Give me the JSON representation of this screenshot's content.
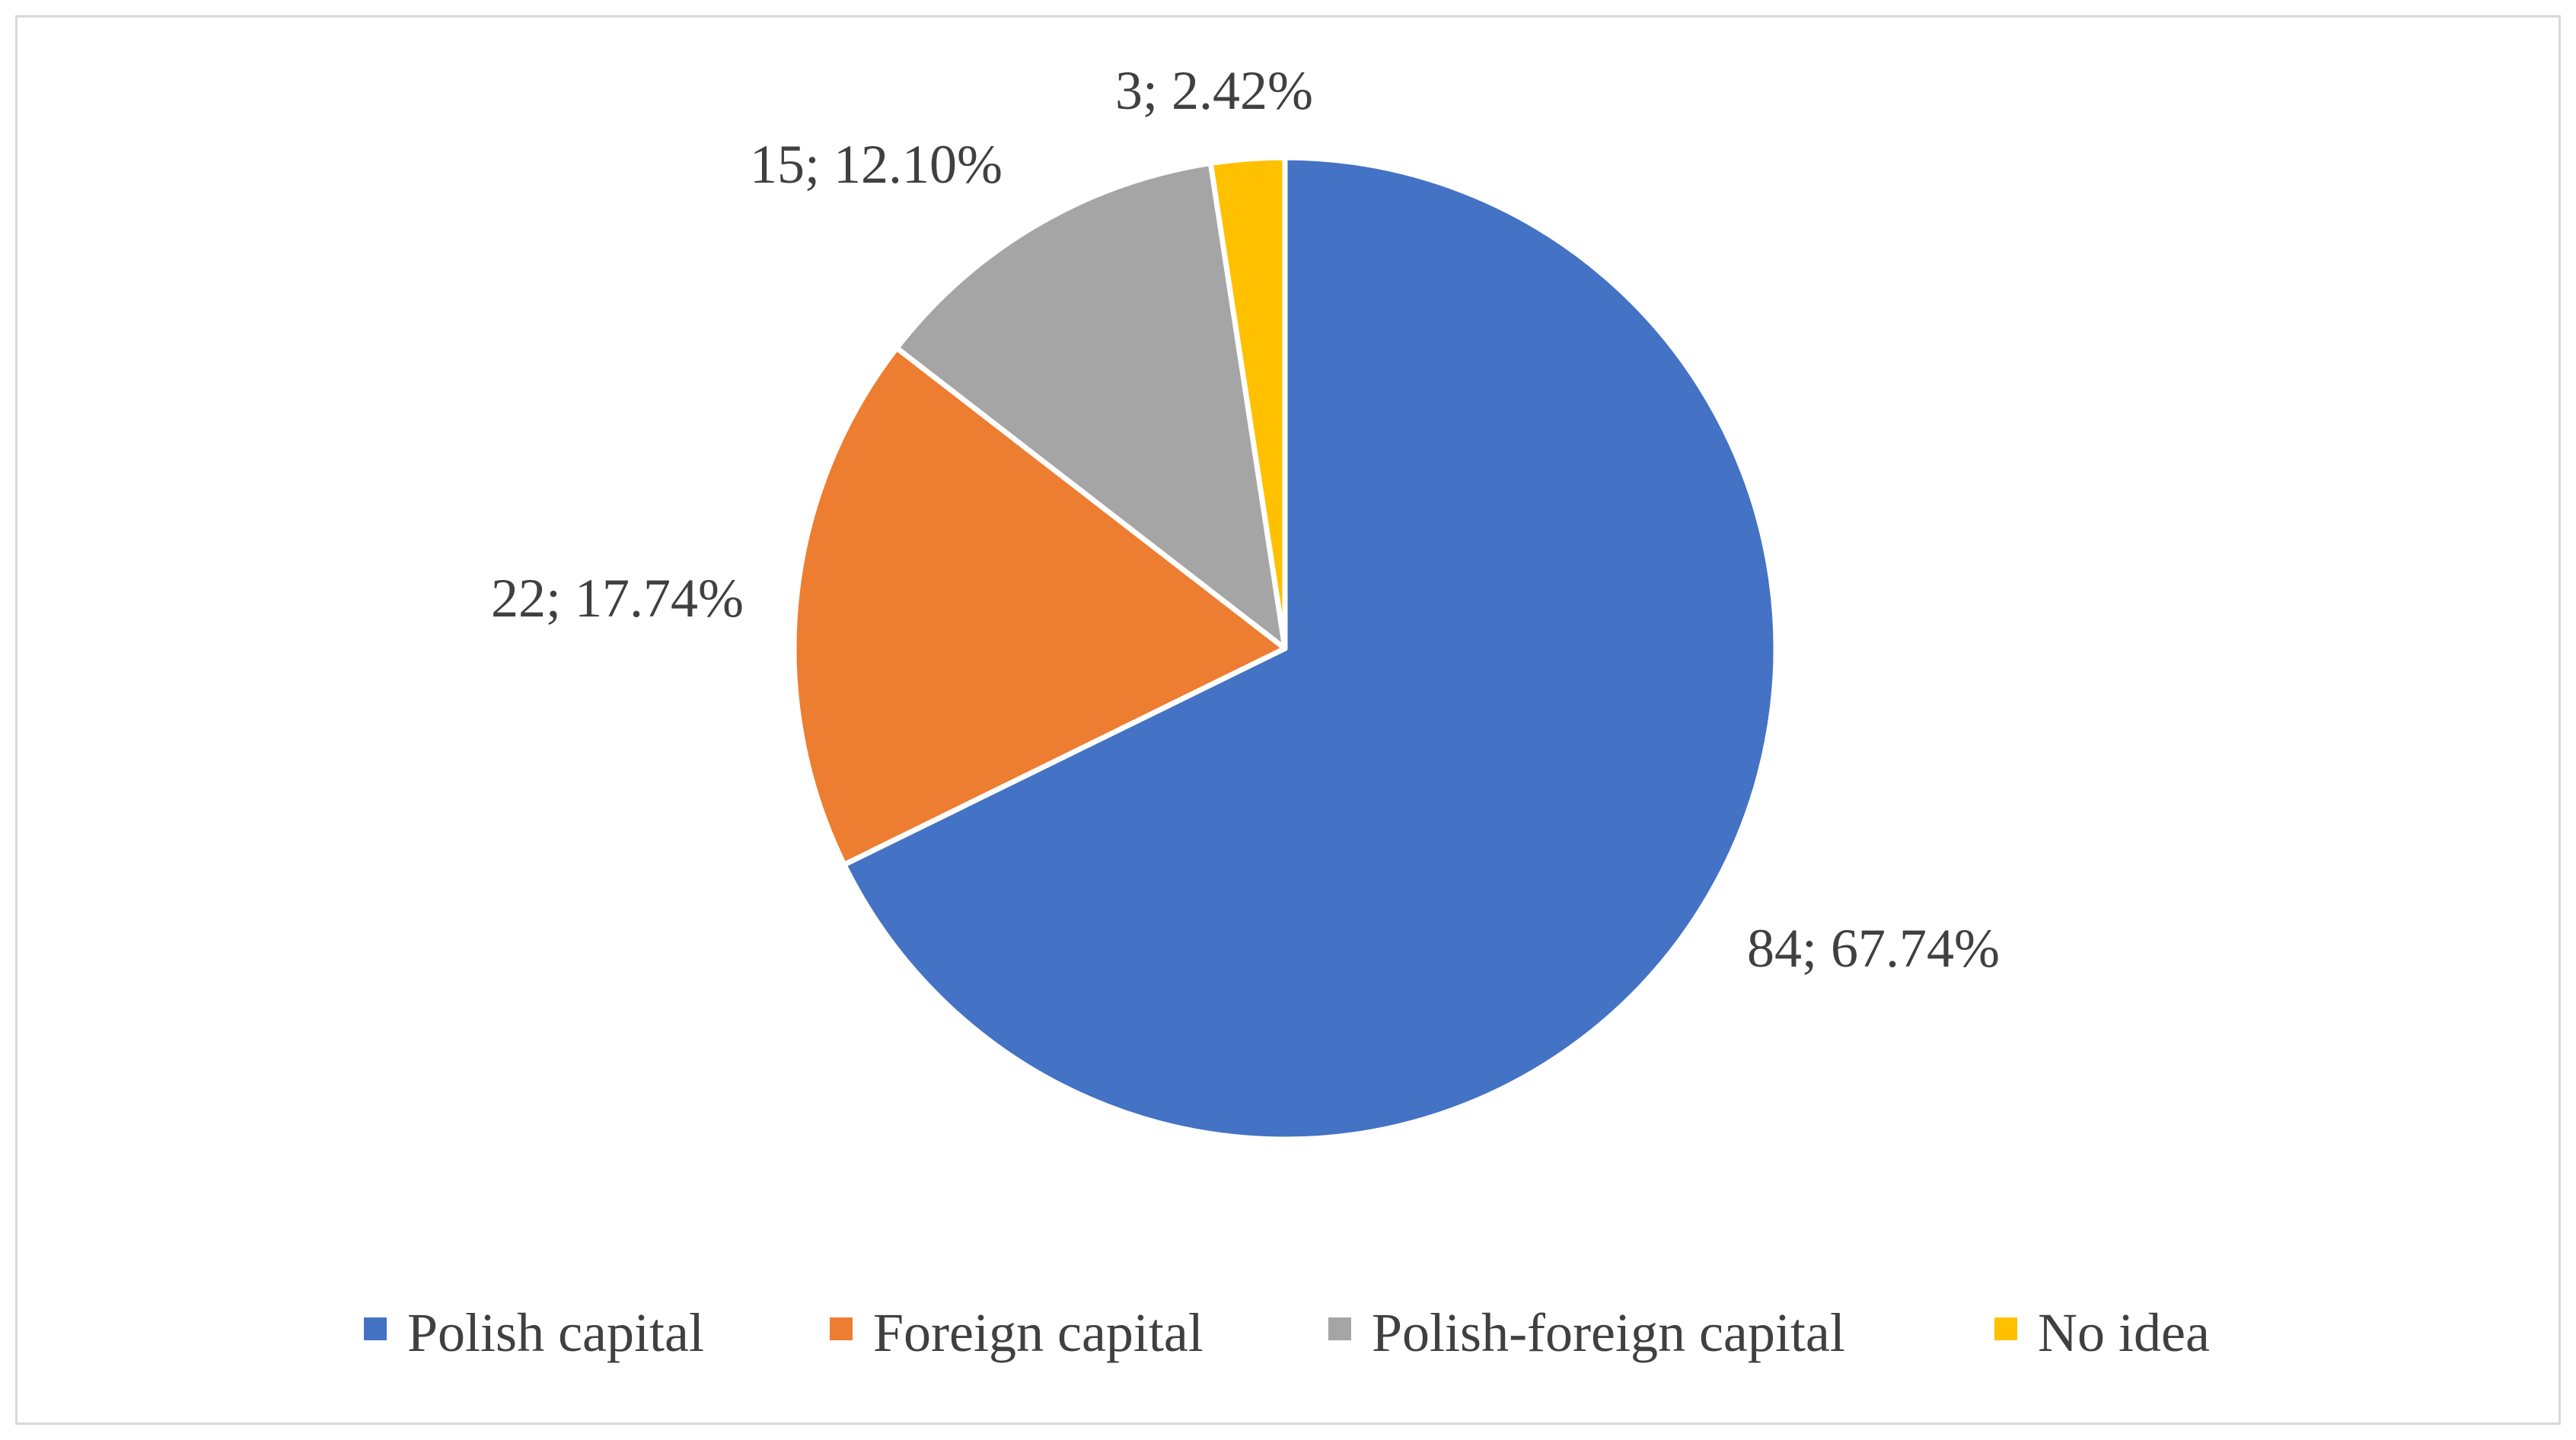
{
  "chart_data": {
    "type": "pie",
    "slices": [
      {
        "name": "Polish capital",
        "count": 84,
        "percent": 67.74,
        "label": "84; 67.74%",
        "color": "#4472C4"
      },
      {
        "name": "Foreign capital",
        "count": 22,
        "percent": 17.74,
        "label": "22; 17.74%",
        "color": "#ED7D31"
      },
      {
        "name": "Polish-foreign capital",
        "count": 15,
        "percent": 12.1,
        "label": "15; 12.10%",
        "color": "#A5A5A5"
      },
      {
        "name": "No idea",
        "count": 3,
        "percent": 2.42,
        "label": "3; 2.42%",
        "color": "#FFC000"
      }
    ],
    "title": "",
    "legend_position": "bottom",
    "start_angle": "12 o'clock, clockwise"
  }
}
